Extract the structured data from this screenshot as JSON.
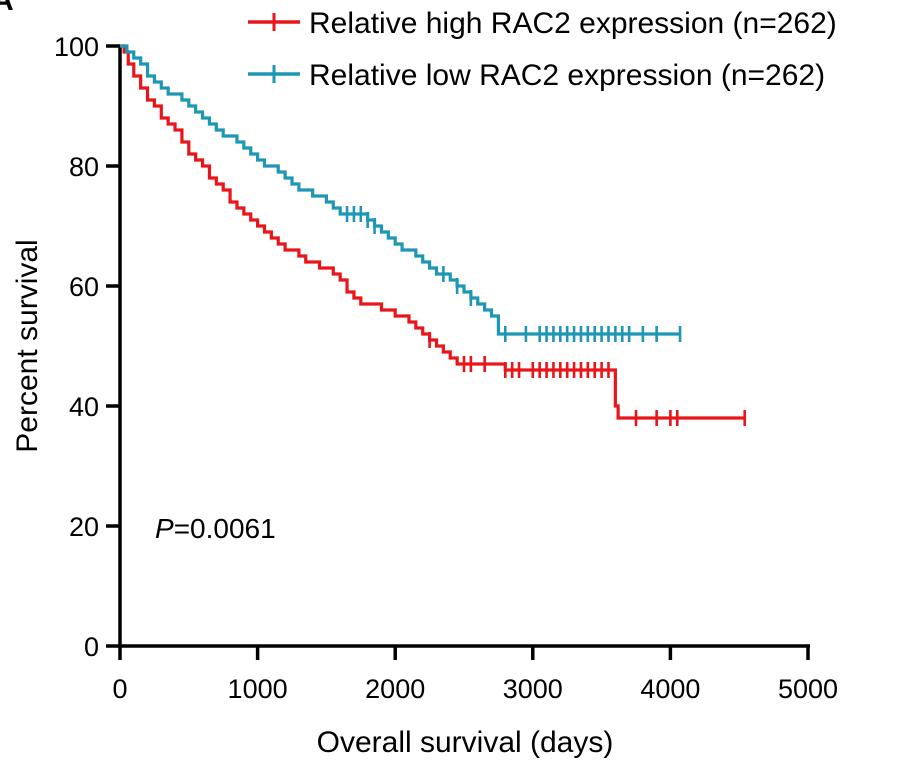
{
  "chart_data": {
    "type": "line",
    "subtype": "kaplan-meier",
    "panel_label": "A",
    "xlabel": "Overall survival (days)",
    "ylabel": "Percent survival",
    "xlim": [
      0,
      5000
    ],
    "ylim": [
      0,
      100
    ],
    "xticks": [
      0,
      1000,
      2000,
      3000,
      4000,
      5000
    ],
    "yticks": [
      0,
      20,
      40,
      60,
      80,
      100
    ],
    "legend_position": "top-right",
    "annotation": {
      "prefix": "P",
      "value": "=0.0061"
    },
    "series": [
      {
        "name": "Relative high RAC2 expression (n=262)",
        "color": "#e8161b",
        "x": [
          0,
          30,
          60,
          100,
          150,
          200,
          250,
          300,
          350,
          400,
          450,
          500,
          550,
          600,
          650,
          700,
          750,
          800,
          850,
          900,
          950,
          1000,
          1050,
          1100,
          1150,
          1200,
          1250,
          1300,
          1350,
          1400,
          1450,
          1500,
          1550,
          1600,
          1650,
          1700,
          1750,
          1800,
          1850,
          1900,
          1950,
          2000,
          2050,
          2100,
          2150,
          2200,
          2250,
          2300,
          2350,
          2400,
          2450,
          2500,
          2600,
          2700,
          2800,
          2900,
          3000,
          3100,
          3200,
          3300,
          3400,
          3500,
          3600,
          3620,
          3700,
          4000,
          4540
        ],
        "y": [
          100,
          99,
          97,
          95,
          93,
          91,
          90,
          88,
          87,
          86,
          84,
          82,
          81,
          80,
          78,
          77,
          76,
          74,
          73,
          72,
          71,
          70,
          69,
          68,
          67,
          66,
          66,
          65,
          64,
          64,
          63,
          63,
          62,
          61,
          59,
          58,
          57,
          57,
          57,
          56,
          56,
          55,
          55,
          54,
          53,
          52,
          51,
          50,
          49,
          48,
          47,
          47,
          47,
          47,
          46,
          46,
          46,
          46,
          46,
          46,
          46,
          46,
          40,
          38,
          38,
          38,
          38
        ],
        "censor_x": [
          2250,
          2500,
          2550,
          2650,
          2800,
          2850,
          2900,
          3000,
          3050,
          3100,
          3150,
          3200,
          3250,
          3300,
          3350,
          3400,
          3450,
          3500,
          3550,
          3750,
          3900,
          4000,
          4050,
          4540
        ]
      },
      {
        "name": "Relative low RAC2 expression (n=262)",
        "color": "#1e97b4",
        "x": [
          0,
          50,
          100,
          150,
          200,
          250,
          300,
          350,
          400,
          450,
          500,
          550,
          600,
          650,
          700,
          750,
          800,
          850,
          900,
          950,
          1000,
          1050,
          1100,
          1150,
          1200,
          1250,
          1300,
          1350,
          1400,
          1450,
          1500,
          1550,
          1600,
          1650,
          1700,
          1750,
          1800,
          1850,
          1900,
          1950,
          2000,
          2050,
          2100,
          2150,
          2200,
          2250,
          2300,
          2350,
          2400,
          2450,
          2500,
          2550,
          2600,
          2650,
          2700,
          2750,
          2800,
          3000,
          3500,
          4000,
          4070
        ],
        "y": [
          100,
          99,
          98,
          97,
          95,
          94,
          93,
          92,
          92,
          91,
          90,
          89,
          88,
          87,
          86,
          85,
          85,
          84,
          83,
          82,
          81,
          80,
          80,
          79,
          78,
          77,
          76,
          76,
          75,
          75,
          74,
          73,
          72,
          72,
          72,
          72,
          71,
          70,
          69,
          68,
          67,
          66,
          66,
          65,
          64,
          63,
          62,
          62,
          61,
          60,
          59,
          58,
          57,
          56,
          55,
          52,
          52,
          52,
          52,
          52,
          52
        ],
        "censor_x": [
          1650,
          1700,
          1750,
          1800,
          1850,
          2350,
          2450,
          2550,
          2800,
          2950,
          3050,
          3100,
          3150,
          3200,
          3250,
          3300,
          3350,
          3400,
          3450,
          3500,
          3550,
          3600,
          3650,
          3700,
          3800,
          3900,
          4070
        ]
      }
    ]
  }
}
